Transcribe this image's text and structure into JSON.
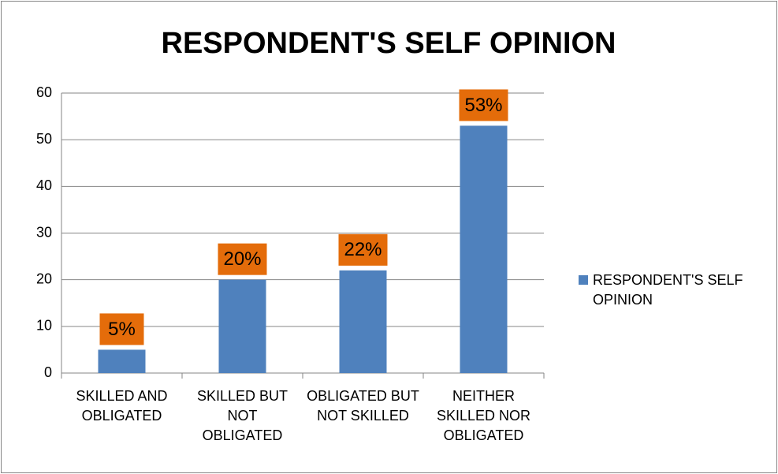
{
  "chart_data": {
    "type": "bar",
    "title": "RESPONDENT'S SELF OPINION",
    "categories": [
      "SKILLED AND OBLIGATED",
      "SKILLED BUT NOT OBLIGATED",
      "OBLIGATED BUT NOT SKILLED",
      "NEITHER SKILLED NOR OBLIGATED"
    ],
    "series": [
      {
        "name": "RESPONDENT'S SELF OPINION",
        "color": "#4f81bd",
        "values": [
          5,
          20,
          22,
          53
        ],
        "value_labels": [
          "5%",
          "20%",
          "22%",
          "53%"
        ]
      }
    ],
    "value_label_color": "#e46c0a",
    "ylim": [
      0,
      60
    ],
    "yticks": [
      0,
      10,
      20,
      30,
      40,
      50,
      60
    ],
    "grid": true,
    "legend": "right"
  }
}
